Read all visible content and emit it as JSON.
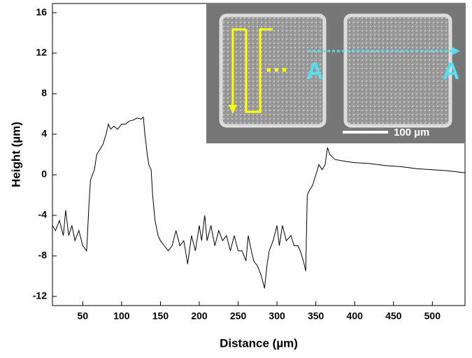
{
  "chart_data": {
    "type": "line",
    "xlabel": "Distance (µm)",
    "ylabel": "Height (µm)",
    "x": [
      11,
      15,
      20,
      25,
      28,
      32,
      36,
      40,
      45,
      50,
      55,
      58,
      60,
      65,
      68,
      72,
      76,
      80,
      83,
      86,
      90,
      95,
      100,
      105,
      110,
      115,
      120,
      125,
      128,
      130,
      133,
      135,
      138,
      140,
      143,
      147,
      150,
      155,
      160,
      165,
      170,
      175,
      180,
      185,
      190,
      195,
      200,
      203,
      207,
      210,
      215,
      220,
      225,
      230,
      235,
      240,
      245,
      250,
      255,
      260,
      263,
      267,
      270,
      275,
      280,
      284,
      287,
      290,
      295,
      300,
      303,
      307,
      312,
      318,
      322,
      327,
      330,
      334,
      337,
      339,
      342,
      346,
      350,
      354,
      358,
      362,
      365,
      368,
      375,
      390,
      400,
      420,
      440,
      460,
      480,
      500,
      520,
      542
    ],
    "values": [
      -5,
      -5.5,
      -4.5,
      -6,
      -3.5,
      -6,
      -5,
      -6.5,
      -5.5,
      -7,
      -7.5,
      -3,
      -0.5,
      0.5,
      2,
      2.5,
      3,
      4,
      5,
      4.5,
      4.8,
      4.5,
      5,
      5,
      5.3,
      5.4,
      5.6,
      5.5,
      5.7,
      4,
      2,
      1,
      0.5,
      -2,
      -4.5,
      -6,
      -6.5,
      -7,
      -7.5,
      -7,
      -5.5,
      -7,
      -6.5,
      -8.8,
      -6,
      -7.5,
      -5,
      -6.5,
      -4,
      -6.5,
      -5,
      -7,
      -5.5,
      -6.5,
      -6,
      -7.5,
      -6,
      -7.5,
      -7.5,
      -8.5,
      -6,
      -7.5,
      -8.5,
      -9,
      -10,
      -11.2,
      -9,
      -7.5,
      -6.5,
      -5,
      -7,
      -5,
      -6.5,
      -6,
      -7,
      -7,
      -7.5,
      -8.5,
      -9.5,
      -2,
      -1.5,
      -1,
      0,
      1,
      0.5,
      1,
      2.7,
      2,
      1.5,
      1.3,
      1.2,
      1.1,
      0.9,
      0.8,
      0.6,
      0.5,
      0.4,
      0.2
    ],
    "color": "#000000",
    "xlim": [
      11,
      542
    ],
    "xticks": [
      50,
      100,
      150,
      200,
      250,
      300,
      350,
      400,
      450,
      500
    ],
    "ylim": [
      -12.9,
      16.9
    ],
    "yticks": [
      -12,
      -8,
      -4,
      0,
      4,
      8,
      12,
      16
    ],
    "annotations": [
      "A",
      "A",
      "100 µm"
    ]
  }
}
